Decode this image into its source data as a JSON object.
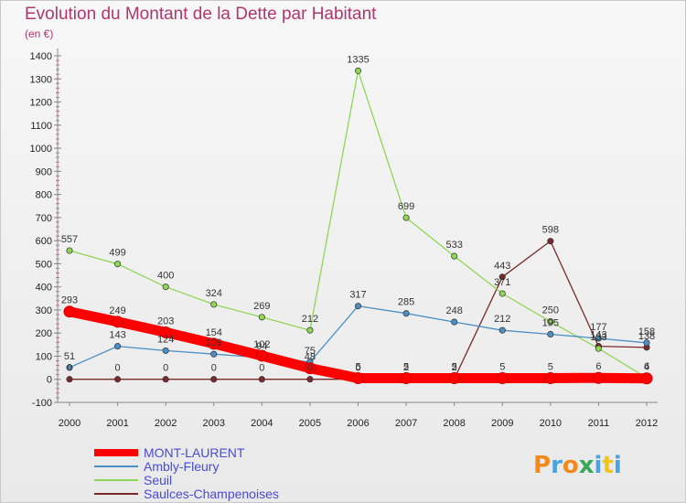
{
  "chart_data": {
    "type": "line",
    "title": "Evolution du Montant de la Dette par Habitant",
    "subtitle": "(en €)",
    "xlabel": "",
    "ylabel": "",
    "x": [
      2000,
      2001,
      2002,
      2003,
      2004,
      2005,
      2006,
      2007,
      2008,
      2009,
      2010,
      2011,
      2012
    ],
    "ylim": [
      -100,
      1400
    ],
    "yticks": [
      -100,
      0,
      100,
      200,
      300,
      400,
      500,
      600,
      700,
      800,
      900,
      1000,
      1100,
      1200,
      1300,
      1400
    ],
    "grid": false,
    "legend_position": "bottom-left",
    "series": [
      {
        "name": "MONT-LAURENT",
        "color": "#ff0000",
        "values": [
          293,
          249,
          203,
          154,
          102,
          48,
          5,
          5,
          5,
          5,
          5,
          6,
          4
        ]
      },
      {
        "name": "Ambly-Fleury",
        "color": "#4a90c4",
        "values": [
          51,
          143,
          124,
          109,
          94,
          75,
          317,
          285,
          248,
          212,
          195,
          177,
          158
        ]
      },
      {
        "name": "Seuil",
        "color": "#8ed654",
        "values": [
          557,
          499,
          400,
          324,
          269,
          212,
          1335,
          699,
          533,
          371,
          250,
          133,
          6
        ]
      },
      {
        "name": "Saulces-Champenoises",
        "color": "#7a2a2a",
        "values": [
          0,
          0,
          0,
          0,
          0,
          0,
          0,
          2,
          2,
          443,
          598,
          143,
          138
        ]
      }
    ]
  },
  "logo_text": "Proxiti"
}
